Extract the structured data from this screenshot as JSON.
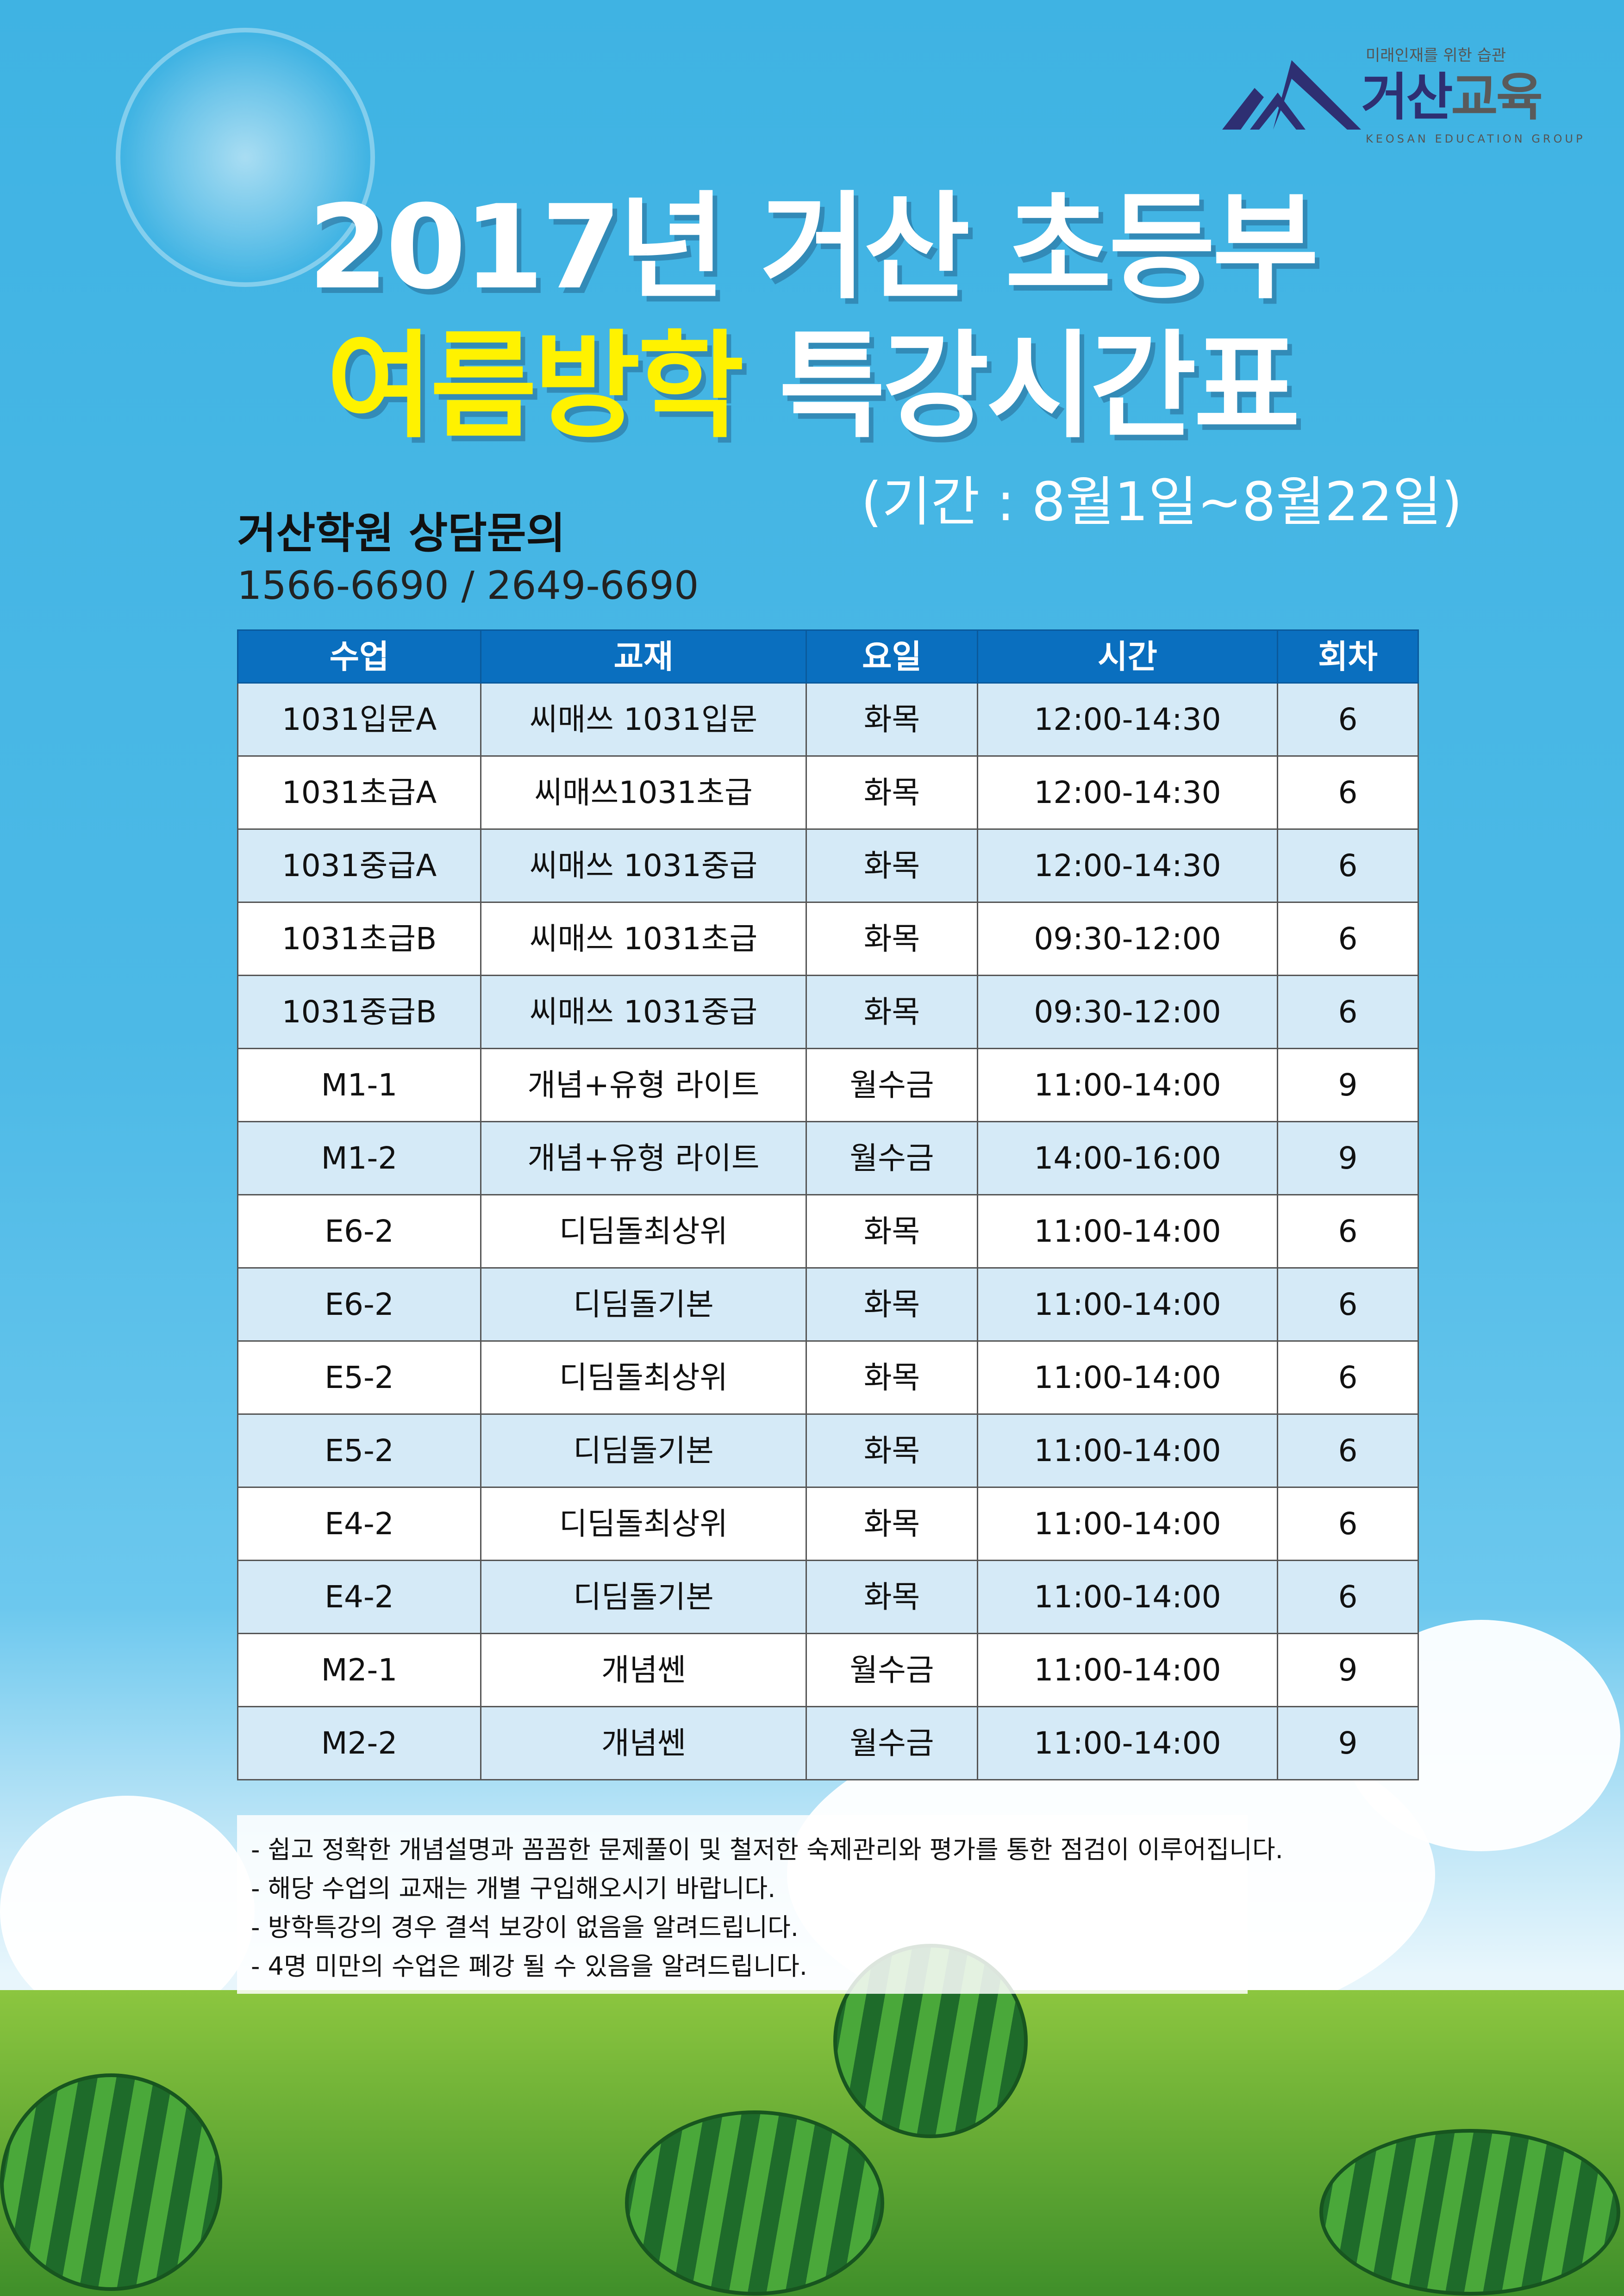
{
  "logo": {
    "tagline": "미래인재를 위한 습관",
    "name_part1": "거산",
    "name_part2": "교육",
    "english": "KEOSAN EDUCATION GROUP",
    "color": "#2e2f72"
  },
  "title": {
    "line1": "2017년 거산 초등부",
    "line2_highlight": "여름방학",
    "line2_rest": "특강시간표",
    "highlight_color": "#fff200"
  },
  "period": "(기간 : 8월1일~8월22일)",
  "contact": {
    "label": "거산학원 상담문의",
    "phone": "1566-6690 / 2649-6690"
  },
  "table": {
    "headers": [
      "수업",
      "교재",
      "요일",
      "시간",
      "회차"
    ],
    "rows": [
      [
        "1031입문A",
        "씨매쓰 1031입문",
        "화목",
        "12:00-14:30",
        "6"
      ],
      [
        "1031초급A",
        "씨매쓰1031초급",
        "화목",
        "12:00-14:30",
        "6"
      ],
      [
        "1031중급A",
        "씨매쓰 1031중급",
        "화목",
        "12:00-14:30",
        "6"
      ],
      [
        "1031초급B",
        "씨매쓰 1031초급",
        "화목",
        "09:30-12:00",
        "6"
      ],
      [
        "1031중급B",
        "씨매쓰 1031중급",
        "화목",
        "09:30-12:00",
        "6"
      ],
      [
        "M1-1",
        "개념+유형 라이트",
        "월수금",
        "11:00-14:00",
        "9"
      ],
      [
        "M1-2",
        "개념+유형 라이트",
        "월수금",
        "14:00-16:00",
        "9"
      ],
      [
        "E6-2",
        "디딤돌최상위",
        "화목",
        "11:00-14:00",
        "6"
      ],
      [
        "E6-2",
        "디딤돌기본",
        "화목",
        "11:00-14:00",
        "6"
      ],
      [
        "E5-2",
        "디딤돌최상위",
        "화목",
        "11:00-14:00",
        "6"
      ],
      [
        "E5-2",
        "디딤돌기본",
        "화목",
        "11:00-14:00",
        "6"
      ],
      [
        "E4-2",
        "디딤돌최상위",
        "화목",
        "11:00-14:00",
        "6"
      ],
      [
        "E4-2",
        "디딤돌기본",
        "화목",
        "11:00-14:00",
        "6"
      ],
      [
        "M2-1",
        "개념쎈",
        "월수금",
        "11:00-14:00",
        "9"
      ],
      [
        "M2-2",
        "개념쎈",
        "월수금",
        "11:00-14:00",
        "9"
      ]
    ]
  },
  "notes": [
    "- 쉽고 정확한 개념설명과 꼼꼼한 문제풀이 및 철저한 숙제관리와 평가를 통한 점검이 이루어집니다.",
    "- 해당 수업의 교재는 개별 구입해오시기 바랍니다.",
    "- 방학특강의 경우 결석 보강이 없음을 알려드립니다.",
    "- 4명 미만의 수업은 폐강 될 수 있음을 알려드립니다."
  ]
}
